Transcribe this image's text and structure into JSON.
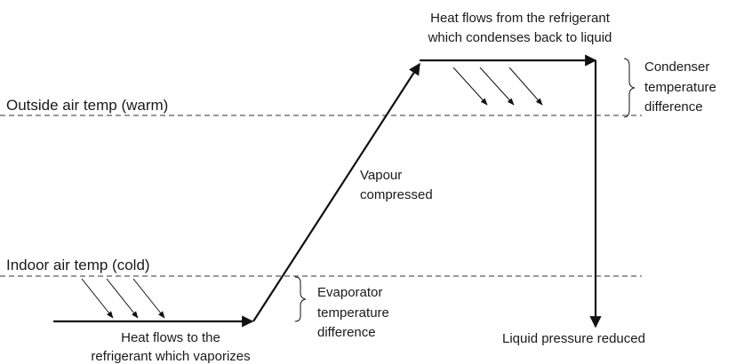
{
  "condenser_heat": [
    "Heat flows from the refrigerant",
    "which condenses back to liquid"
  ],
  "condenser_difference": [
    "Condenser",
    "temperature",
    "difference"
  ],
  "outside_line": "Outside air temp (warm)",
  "compression": [
    "Vapour",
    "compressed"
  ],
  "indoor_line": "Indoor air temp (cold)",
  "evaporator_difference": [
    "Evaporator",
    "temperature",
    "difference"
  ],
  "evaporator_heat": [
    "Heat flows to the",
    "refrigerant which vaporizes"
  ],
  "expansion": "Liquid pressure reduced"
}
